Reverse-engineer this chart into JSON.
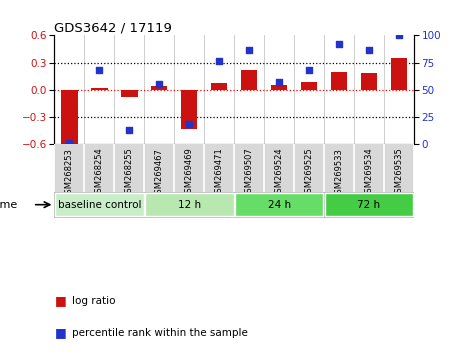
{
  "title": "GDS3642 / 17119",
  "samples": [
    "GSM268253",
    "GSM268254",
    "GSM268255",
    "GSM269467",
    "GSM269469",
    "GSM269471",
    "GSM269507",
    "GSM269524",
    "GSM269525",
    "GSM269533",
    "GSM269534",
    "GSM269535"
  ],
  "log_ratio": [
    -0.6,
    0.02,
    -0.08,
    0.04,
    -0.44,
    0.07,
    0.22,
    0.05,
    0.08,
    0.2,
    0.18,
    0.35
  ],
  "percentile": [
    1,
    68,
    13,
    55,
    18,
    76,
    87,
    57,
    68,
    92,
    87,
    100
  ],
  "bar_color": "#cc1111",
  "dot_color": "#2233cc",
  "ylim_left": [
    -0.6,
    0.6
  ],
  "ylim_right": [
    0,
    100
  ],
  "yticks_left": [
    -0.6,
    -0.3,
    0.0,
    0.3,
    0.6
  ],
  "yticks_right": [
    0,
    25,
    50,
    75,
    100
  ],
  "groups": [
    {
      "label": "baseline control",
      "start": 0,
      "end": 3,
      "color": "#c8edc8"
    },
    {
      "label": "12 h",
      "start": 3,
      "end": 6,
      "color": "#b8e8b0"
    },
    {
      "label": "24 h",
      "start": 6,
      "end": 9,
      "color": "#66dd66"
    },
    {
      "label": "72 h",
      "start": 9,
      "end": 12,
      "color": "#44cc44"
    }
  ],
  "time_label": "time",
  "legend_bar_label": "log ratio",
  "legend_dot_label": "percentile rank within the sample",
  "bg_color": "#ffffff",
  "sample_bg_color": "#d8d8d8",
  "bar_width": 0.55
}
